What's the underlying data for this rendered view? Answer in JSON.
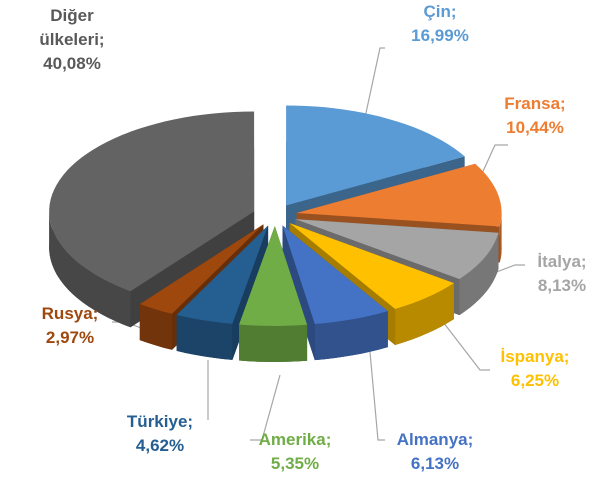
{
  "chart_data": {
    "type": "pie3d",
    "categories": [
      "Çin;",
      "Fransa;",
      "İtalya;",
      "İspanya;",
      "Almanya;",
      "Amerika;",
      "Türkiye;",
      "Rusya;",
      "Diğer ülkeleri;"
    ],
    "values": [
      16.99,
      10.44,
      8.13,
      6.25,
      6.13,
      5.35,
      4.62,
      2.97,
      40.08
    ],
    "value_labels": [
      "16,99%",
      "10,44%",
      "8,13%",
      "6,25%",
      "6,13%",
      "5,35%",
      "4,62%",
      "2,97%",
      "40,08%"
    ],
    "colors": [
      "#5b9bd5",
      "#ed7d31",
      "#a5a5a5",
      "#ffc000",
      "#4472c4",
      "#70ad47",
      "#255e91",
      "#9e480e",
      "#636363"
    ]
  }
}
